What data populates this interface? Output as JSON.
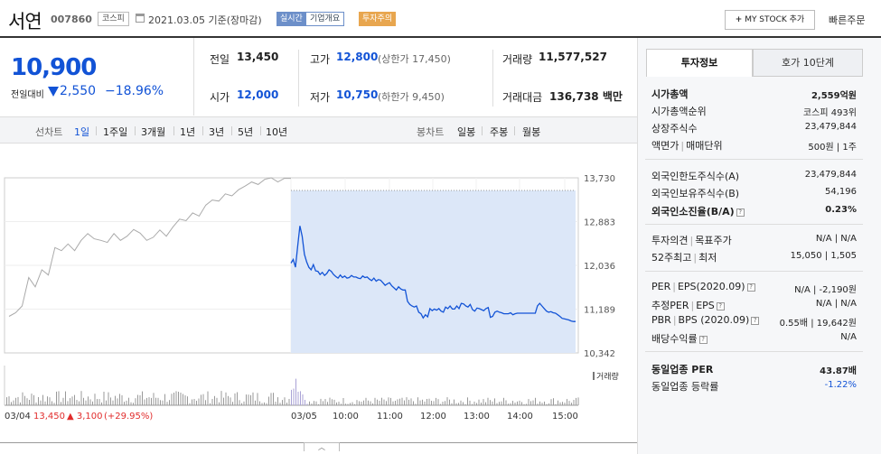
{
  "header": {
    "name": "서연",
    "code": "007860",
    "market": "코스피",
    "date_basis": "2021.03.05 기준(장마감)",
    "realtime": "실시간",
    "corp_overview": "기업개요",
    "invest_warning": "투자주의",
    "mystock_plus": "+",
    "mystock": "MY STOCK 추가",
    "quick_order": "빠른주문"
  },
  "price": {
    "current": "10,900",
    "change_label": "전일대비",
    "change": "2,550",
    "change_pct": "−18.96%"
  },
  "stats": {
    "prev_label": "전일",
    "prev": "13,450",
    "high_label": "고가",
    "high": "12,800",
    "high_limit": "(상한가 17,450)",
    "volume_label": "거래량",
    "volume": "11,577,527",
    "open_label": "시가",
    "open": "12,000",
    "low_label": "저가",
    "low": "10,750",
    "low_limit": "(하한가 9,450)",
    "amount_label": "거래대금",
    "amount": "136,738 백만"
  },
  "chart_bar": {
    "line_label": "선차트",
    "periods": [
      "1일",
      "1주일",
      "3개월",
      "1년",
      "3년",
      "5년",
      "10년"
    ],
    "candle_label": "봉차트",
    "candles": [
      "일봉",
      "주봉",
      "월봉"
    ]
  },
  "chart_data": {
    "type": "line",
    "y_ticks": [
      "13,730",
      "12,883",
      "12,036",
      "11,189",
      "10,342"
    ],
    "ylim": [
      10342,
      13730
    ],
    "x_labels": [
      "03/04",
      "03/05",
      "10:00",
      "11:00",
      "12:00",
      "13:00",
      "14:00",
      "15:00"
    ],
    "volume_label": "거래량",
    "prev_day": [
      11050,
      11120,
      11250,
      11800,
      11620,
      11950,
      11850,
      12380,
      12320,
      12450,
      12320,
      12520,
      12650,
      12550,
      12520,
      12480,
      12650,
      12520,
      12600,
      12730,
      12660,
      12520,
      12580,
      12720,
      12600,
      12780,
      12930,
      12900,
      13050,
      12990,
      13200,
      13300,
      13280,
      13420,
      13380,
      13500,
      13570,
      13650,
      13600,
      13700,
      13730,
      13650,
      13720,
      13720
    ],
    "today": [
      12080,
      12150,
      12000,
      12400,
      12800,
      12600,
      12250,
      12100,
      12000,
      11950,
      12050,
      11930,
      11920,
      11860,
      11900,
      11840,
      11880,
      11950,
      11920,
      11860,
      11820,
      11790,
      11850,
      11800,
      11830,
      11790,
      11800,
      11840,
      11810,
      11810,
      11790,
      11780,
      11830,
      11800,
      11810,
      11770,
      11740,
      11790,
      11730,
      11760,
      11750,
      11700,
      11650,
      11680,
      11700,
      11640,
      11600,
      11560,
      11620,
      11580,
      11560,
      11560,
      11340,
      11280,
      11250,
      11230,
      11250,
      11130,
      11100,
      11020,
      11080,
      11040,
      11200,
      11160,
      11190,
      11170,
      11200,
      11150,
      11130,
      11230,
      11200,
      11250,
      11190,
      11190,
      11250,
      11200,
      11300,
      11290,
      11250,
      11230,
      11280,
      11180,
      11150,
      11210,
      11200,
      11180,
      11160,
      11200,
      11220,
      11030,
      11050,
      11130,
      11150,
      11130,
      11120,
      11100,
      11100,
      11100,
      11120,
      11080,
      11100,
      11110,
      11110,
      11110,
      11110,
      11110,
      11110,
      11110,
      11110,
      11110,
      11250,
      11300,
      11250,
      11200,
      11150,
      11130,
      11140,
      11120,
      11110,
      11080,
      11050,
      11010,
      11000,
      10990,
      10980,
      10960,
      10950,
      10950
    ],
    "prev_close": 13450,
    "footer_date": "03/04",
    "footer_price": "13,450",
    "footer_change": "▲ 3,100",
    "footer_pct": "(+29.95%)"
  },
  "right_panel": {
    "tab_info": "투자정보",
    "tab_quote": "호가 10단계",
    "rows": [
      {
        "label": "시가총액",
        "value": "2,559억원"
      },
      {
        "label": "시가총액순위",
        "value": "코스피 493위"
      },
      {
        "label": "상장주식수",
        "value": "23,479,844"
      },
      {
        "label": "액면가",
        "label2": "매매단위",
        "value": "500원",
        "value2": "1주"
      },
      {
        "label": "외국인한도주식수(A)",
        "value": "23,479,844"
      },
      {
        "label": "외국인보유주식수(B)",
        "value": "54,196"
      },
      {
        "label": "외국인소진율(B/A)",
        "value": "0.23%"
      },
      {
        "label": "투자의견",
        "label2": "목표주가",
        "value": "N/A",
        "value2": "N/A"
      },
      {
        "label": "52주최고",
        "label2": "최저",
        "value": "15,050",
        "value2": "1,505"
      },
      {
        "label": "PER",
        "label2": "EPS(2020.09)",
        "value": "N/A",
        "value2": "-2,190원"
      },
      {
        "label": "추정PER",
        "label2": "EPS",
        "value": "N/A",
        "value2": "N/A"
      },
      {
        "label": "PBR",
        "label2": "BPS (2020.09)",
        "value": "0.55배",
        "value2": "19,642원"
      },
      {
        "label": "배당수익률",
        "value": "N/A"
      },
      {
        "label": "동일업종 PER",
        "value": "43.87배"
      },
      {
        "label": "동일업종 등락률",
        "value": "-1.22%"
      }
    ],
    "info_mark": "?"
  },
  "colors": {
    "accent": "#1253d6",
    "down": "#1253d6",
    "up": "#e12c2c",
    "fill": "#dce7f8"
  }
}
